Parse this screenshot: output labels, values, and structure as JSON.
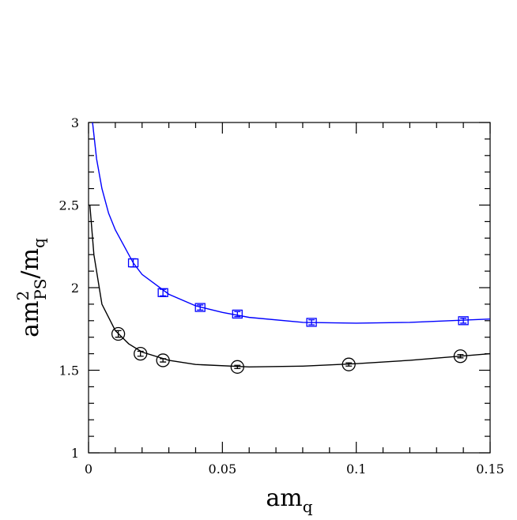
{
  "chart_data": {
    "type": "scatter",
    "x_label": {
      "base": "am",
      "sub": "q"
    },
    "y_label": {
      "base": "am",
      "sup": "2",
      "sub": "PS",
      "mid": "/m",
      "sub2": "q"
    },
    "xlim": [
      0,
      0.15
    ],
    "ylim": [
      1,
      3
    ],
    "xticks": [
      0,
      0.05,
      0.1,
      0.15
    ],
    "yticks": [
      1,
      1.5,
      2,
      2.5,
      3
    ],
    "xminorticks": [
      0.01,
      0.02,
      0.03,
      0.04,
      0.06,
      0.07,
      0.08,
      0.09,
      0.11,
      0.12,
      0.13,
      0.14
    ],
    "yminorticks": [
      1.1,
      1.2,
      1.3,
      1.4,
      1.6,
      1.7,
      1.8,
      1.9,
      2.1,
      2.2,
      2.3,
      2.4,
      2.6,
      2.7,
      2.8,
      2.9
    ],
    "series": [
      {
        "color": "#0000ff",
        "marker": "square",
        "x": [
          0.0167,
          0.0278,
          0.0417,
          0.0556,
          0.0833,
          0.14
        ],
        "values": [
          2.15,
          1.97,
          1.88,
          1.84,
          1.79,
          1.8
        ],
        "errors": [
          0.025,
          0.02,
          0.015,
          0.015,
          0.015,
          0.015
        ]
      },
      {
        "color": "#000000",
        "marker": "circle",
        "x": [
          0.0111,
          0.0194,
          0.0278,
          0.0556,
          0.0972,
          0.1389
        ],
        "values": [
          1.72,
          1.6,
          1.56,
          1.52,
          1.535,
          1.585
        ],
        "errors": [
          0.02,
          0.015,
          0.01,
          0.01,
          0.01,
          0.01
        ]
      }
    ],
    "fits": [
      {
        "color": "#0000ff",
        "x": [
          0.0015,
          0.003,
          0.005,
          0.0075,
          0.01,
          0.0167,
          0.02,
          0.03,
          0.04,
          0.05,
          0.06,
          0.08,
          0.1,
          0.12,
          0.15
        ],
        "values": [
          3.0,
          2.78,
          2.6,
          2.45,
          2.35,
          2.15,
          2.08,
          1.96,
          1.89,
          1.85,
          1.82,
          1.79,
          1.785,
          1.79,
          1.81
        ]
      },
      {
        "color": "#000000",
        "x": [
          0.0005,
          0.001,
          0.002,
          0.005,
          0.01,
          0.015,
          0.02,
          0.03,
          0.04,
          0.06,
          0.08,
          0.1,
          0.12,
          0.15
        ],
        "values": [
          2.5,
          2.4,
          2.2,
          1.9,
          1.74,
          1.66,
          1.61,
          1.56,
          1.535,
          1.52,
          1.525,
          1.54,
          1.56,
          1.6
        ]
      }
    ]
  }
}
